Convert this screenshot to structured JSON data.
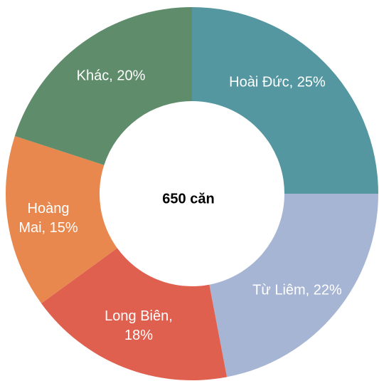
{
  "chart_data": {
    "type": "donut",
    "center_label": "650 căn",
    "values": [
      25,
      22,
      18,
      15,
      20
    ],
    "value_labels": [
      "Hoài Đức, 25%",
      "Từ Liêm, 22%",
      "Long Biên, 18%",
      "Hoàng Mai, 15%",
      "Khác, 20%"
    ],
    "colors": [
      "#5497a0",
      "#a7b5d4",
      "#e0604f",
      "#e8884f",
      "#5f8c6b"
    ]
  }
}
